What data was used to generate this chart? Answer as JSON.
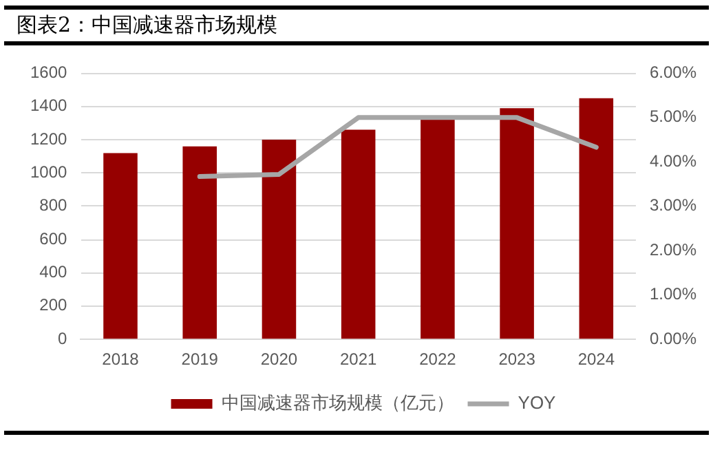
{
  "chart_data": {
    "type": "bar",
    "title": "图表2：中国减速器市场规模",
    "categories": [
      "2018",
      "2019",
      "2020",
      "2021",
      "2022",
      "2023",
      "2024"
    ],
    "series": [
      {
        "name": "中国减速器市场规模（亿元）",
        "color": "#960000",
        "values": [
          1120,
          1160,
          1200,
          1260,
          1330,
          1390,
          1450
        ]
      },
      {
        "name": "YOY",
        "type": "line",
        "axis": "y2",
        "color": "#a6a6a6",
        "values": [
          null,
          3.67,
          3.72,
          5.0,
          5.0,
          5.0,
          4.33
        ]
      }
    ],
    "ylim": [
      0,
      1600
    ],
    "yticks": [
      0,
      200,
      400,
      600,
      800,
      1000,
      1200,
      1400,
      1600
    ],
    "y2lim": [
      0,
      6
    ],
    "y2ticks": [
      {
        "value": 0,
        "label": "0.00%"
      },
      {
        "value": 1,
        "label": "1.00%"
      },
      {
        "value": 2,
        "label": "2.00%"
      },
      {
        "value": 3,
        "label": "3.00%"
      },
      {
        "value": 4,
        "label": "4.00%"
      },
      {
        "value": 5,
        "label": "5.00%"
      },
      {
        "value": 6,
        "label": "6.00%"
      }
    ],
    "grid": "y",
    "legend": "bottom"
  }
}
